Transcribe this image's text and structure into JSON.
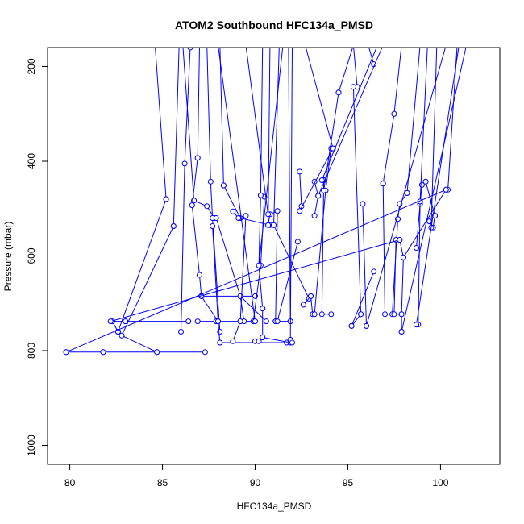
{
  "chart_data": {
    "type": "line",
    "title": "ATOM2 Southbound HFC134a_PMSD",
    "xlabel": "HFC134a_PMSD",
    "ylabel": "Pressure (mbar)",
    "xlim": [
      78.8,
      103.2
    ],
    "ylim": [
      1040,
      160
    ],
    "y_reversed": true,
    "x_ticks": [
      80,
      85,
      90,
      95,
      100
    ],
    "y_ticks": [
      200,
      400,
      600,
      800,
      1000
    ],
    "color": "#0000ff",
    "marker": "open-circle",
    "series": [
      {
        "x": [
          84.6,
          85.2
        ],
        "y": [
          155,
          480
        ]
      },
      {
        "x": [
          85.2,
          82.6
        ],
        "y": [
          480,
          760
        ]
      },
      {
        "x": [
          82.6,
          82.3,
          83.0
        ],
        "y": [
          760,
          738,
          738
        ]
      },
      {
        "x": [
          83.0,
          86.4
        ],
        "y": [
          738,
          738
        ]
      },
      {
        "x": [
          86.5,
          86.2,
          86.0
        ],
        "y": [
          160,
          405,
          760
        ]
      },
      {
        "x": [
          85.9,
          85.6
        ],
        "y": [
          155,
          537
        ]
      },
      {
        "x": [
          85.6,
          82.8
        ],
        "y": [
          537,
          768
        ]
      },
      {
        "x": [
          82.8,
          84.7,
          81.8
        ],
        "y": [
          768,
          803,
          803
        ]
      },
      {
        "x": [
          79.8,
          81.8
        ],
        "y": [
          803,
          803
        ]
      },
      {
        "x": [
          84.7,
          87.3
        ],
        "y": [
          803,
          803
        ]
      },
      {
        "x": [
          86.1,
          86.7
        ],
        "y": [
          155,
          483
        ]
      },
      {
        "x": [
          86.7,
          87.4,
          87.8
        ],
        "y": [
          483,
          495,
          520
        ]
      },
      {
        "x": [
          87.0,
          86.9
        ],
        "y": [
          155,
          393
        ]
      },
      {
        "x": [
          86.9,
          86.6,
          87.0,
          87.1
        ],
        "y": [
          393,
          493,
          640,
          685
        ]
      },
      {
        "x": [
          87.1,
          90.0
        ],
        "y": [
          685,
          685
        ]
      },
      {
        "x": [
          87.1,
          88.0
        ],
        "y": [
          685,
          738
        ]
      },
      {
        "x": [
          86.9,
          87.9
        ],
        "y": [
          738,
          738
        ]
      },
      {
        "x": [
          87.9,
          89.9
        ],
        "y": [
          738,
          738
        ]
      },
      {
        "x": [
          87.4,
          87.6,
          87.7,
          88.1
        ],
        "y": [
          155,
          443,
          520,
          760
        ]
      },
      {
        "x": [
          87.7,
          88.0,
          88.1
        ],
        "y": [
          537,
          738,
          783
        ]
      },
      {
        "x": [
          88.1,
          91.7
        ],
        "y": [
          783,
          783
        ]
      },
      {
        "x": [
          88.1,
          88.3
        ],
        "y": [
          155,
          451
        ]
      },
      {
        "x": [
          88.3,
          89.2,
          90.8
        ],
        "y": [
          451,
          520,
          535
        ]
      },
      {
        "x": [
          88.8,
          89.1
        ],
        "y": [
          506,
          520
        ]
      },
      {
        "x": [
          87.9,
          89.2,
          90.6
        ],
        "y": [
          520,
          685,
          738
        ]
      },
      {
        "x": [
          89.2,
          89.4
        ],
        "y": [
          685,
          738
        ]
      },
      {
        "x": [
          89.2,
          88.8
        ],
        "y": [
          738,
          780
        ]
      },
      {
        "x": [
          89.5,
          89.2
        ],
        "y": [
          515,
          738
        ]
      },
      {
        "x": [
          90.0,
          90.2
        ],
        "y": [
          780,
          780
        ]
      },
      {
        "x": [
          89.9,
          90.3,
          90.5
        ],
        "y": [
          738,
          620,
          475
        ]
      },
      {
        "x": [
          90.4,
          90.3
        ],
        "y": [
          155,
          472
        ]
      },
      {
        "x": [
          90.3,
          90.2,
          90.4
        ],
        "y": [
          472,
          620,
          711
        ]
      },
      {
        "x": [
          90.4,
          90.4
        ],
        "y": [
          711,
          772
        ]
      },
      {
        "x": [
          90.4,
          91.9
        ],
        "y": [
          772,
          783
        ]
      },
      {
        "x": [
          90.8,
          90.7
        ],
        "y": [
          155,
          535
        ]
      },
      {
        "x": [
          90.7,
          90.8,
          91.2
        ],
        "y": [
          535,
          512,
          505
        ]
      },
      {
        "x": [
          91.2,
          91.1
        ],
        "y": [
          505,
          738
        ]
      },
      {
        "x": [
          91.1,
          91.9
        ],
        "y": [
          738,
          738
        ]
      },
      {
        "x": [
          91.3,
          91.0
        ],
        "y": [
          155,
          535
        ]
      },
      {
        "x": [
          91.0,
          92.9
        ],
        "y": [
          535,
          690
        ]
      },
      {
        "x": [
          91.8,
          91.9
        ],
        "y": [
          155,
          738
        ]
      },
      {
        "x": [
          92.0,
          91.9
        ],
        "y": [
          155,
          777
        ]
      },
      {
        "x": [
          91.9,
          92.0
        ],
        "y": [
          777,
          783
        ]
      },
      {
        "x": [
          92.3,
          91.2
        ],
        "y": [
          570,
          738
        ]
      },
      {
        "x": [
          92.4,
          92.5
        ],
        "y": [
          422,
          495
        ]
      },
      {
        "x": [
          92.6,
          93.0
        ],
        "y": [
          703,
          685
        ]
      },
      {
        "x": [
          93.0,
          93.1
        ],
        "y": [
          685,
          723
        ]
      },
      {
        "x": [
          93.2,
          93.4
        ],
        "y": [
          515,
          473
        ]
      },
      {
        "x": [
          93.4,
          93.2,
          93.7
        ],
        "y": [
          473,
          443,
          440
        ]
      },
      {
        "x": [
          93.7,
          93.6,
          94.1
        ],
        "y": [
          440,
          723,
          723
        ]
      },
      {
        "x": [
          94.2,
          92.4
        ],
        "y": [
          373,
          505
        ]
      },
      {
        "x": [
          94.1,
          93.8
        ],
        "y": [
          373,
          462
        ]
      },
      {
        "x": [
          93.8,
          93.2
        ],
        "y": [
          462,
          723
        ]
      },
      {
        "x": [
          93.7,
          94.5
        ],
        "y": [
          462,
          255
        ]
      },
      {
        "x": [
          94.5,
          95.3
        ],
        "y": [
          255,
          155
        ]
      },
      {
        "x": [
          95.3,
          95.5
        ],
        "y": [
          155,
          243
        ]
      },
      {
        "x": [
          95.3,
          95.7
        ],
        "y": [
          243,
          723
        ]
      },
      {
        "x": [
          95.7,
          95.2
        ],
        "y": [
          723,
          748
        ]
      },
      {
        "x": [
          95.2,
          96.4
        ],
        "y": [
          748,
          633
        ]
      },
      {
        "x": [
          96.1,
          96.4
        ],
        "y": [
          155,
          195
        ]
      },
      {
        "x": [
          96.0,
          95.8
        ],
        "y": [
          748,
          490
        ]
      },
      {
        "x": [
          96.9,
          97.0
        ],
        "y": [
          447,
          723
        ]
      },
      {
        "x": [
          96.9,
          97.5
        ],
        "y": [
          447,
          300
        ]
      },
      {
        "x": [
          97.5,
          97.9
        ],
        "y": [
          300,
          155
        ]
      },
      {
        "x": [
          97.4,
          97.7
        ],
        "y": [
          723,
          522
        ]
      },
      {
        "x": [
          97.7,
          97.8,
          98.2
        ],
        "y": [
          522,
          490,
          467
        ]
      },
      {
        "x": [
          97.6,
          97.5,
          97.9
        ],
        "y": [
          566,
          723,
          723
        ]
      },
      {
        "x": [
          97.9,
          97.9
        ],
        "y": [
          723,
          760
        ]
      },
      {
        "x": [
          98.0,
          97.9
        ],
        "y": [
          603,
          723
        ]
      },
      {
        "x": [
          98.2,
          98.9
        ],
        "y": [
          467,
          155
        ]
      },
      {
        "x": [
          98.7,
          98.9
        ],
        "y": [
          583,
          490
        ]
      },
      {
        "x": [
          98.9,
          99.0,
          99.2
        ],
        "y": [
          490,
          450,
          443
        ]
      },
      {
        "x": [
          99.2,
          99.7
        ],
        "y": [
          443,
          515
        ]
      },
      {
        "x": [
          99.7,
          99.6,
          99.4
        ],
        "y": [
          515,
          540,
          527
        ]
      },
      {
        "x": [
          98.8,
          98.9
        ],
        "y": [
          745,
          485
        ]
      },
      {
        "x": [
          98.9,
          99.3
        ],
        "y": [
          485,
          155
        ]
      },
      {
        "x": [
          99.5,
          99.8
        ],
        "y": [
          540,
          155
        ]
      },
      {
        "x": [
          100.3,
          98.0
        ],
        "y": [
          460,
          603
        ]
      },
      {
        "x": [
          100.4,
          100.9
        ],
        "y": [
          460,
          155
        ]
      },
      {
        "x": [
          98.0,
          97.8
        ],
        "y": [
          603,
          566
        ]
      },
      {
        "x": [
          82.2,
          97.8
        ],
        "y": [
          738,
          566
        ]
      },
      {
        "x": [
          79.8,
          100.3
        ],
        "y": [
          803,
          460
        ]
      },
      {
        "x": [
          88.0,
          90.0
        ],
        "y": [
          155,
          738
        ]
      },
      {
        "x": [
          89.5,
          90.7
        ],
        "y": [
          155,
          512
        ]
      },
      {
        "x": [
          91.5,
          90.2
        ],
        "y": [
          155,
          620
        ]
      },
      {
        "x": [
          92.7,
          94.2
        ],
        "y": [
          155,
          373
        ]
      },
      {
        "x": [
          96.6,
          93.6
        ],
        "y": [
          155,
          440
        ]
      },
      {
        "x": [
          96.9,
          93.4
        ],
        "y": [
          155,
          473
        ]
      },
      {
        "x": [
          100.3,
          96.0
        ],
        "y": [
          155,
          748
        ]
      },
      {
        "x": [
          101.4,
          97.9
        ],
        "y": [
          155,
          760
        ]
      },
      {
        "x": [
          101.0,
          98.7
        ],
        "y": [
          155,
          745
        ]
      }
    ]
  }
}
